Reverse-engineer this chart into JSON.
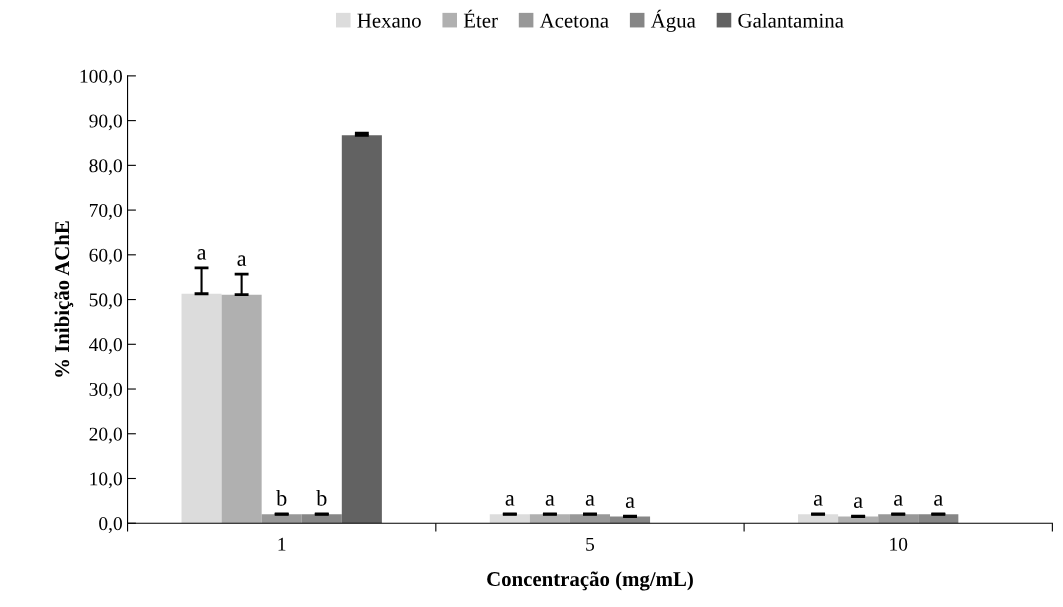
{
  "chart_data": {
    "type": "bar",
    "xlabel": "Concentração (mg/mL)",
    "ylabel": "% Inibição AChE",
    "categories": [
      "1",
      "5",
      "10"
    ],
    "series": [
      {
        "name": "Hexano",
        "color": "#dcdcdc",
        "values": [
          51.3,
          2.0,
          2.0
        ],
        "errors": [
          5.8,
          0.1,
          0.1
        ],
        "value_labels": [
          "a",
          "a",
          "a"
        ]
      },
      {
        "name": "Éter",
        "color": "#b0b0b0",
        "values": [
          51.1,
          2.0,
          1.5
        ],
        "errors": [
          4.6,
          0.1,
          0.1
        ],
        "value_labels": [
          "a",
          "a",
          "a"
        ]
      },
      {
        "name": "Acetona",
        "color": "#989898",
        "values": [
          2.0,
          2.0,
          2.0
        ],
        "errors": [
          0.1,
          0.1,
          0.1
        ],
        "value_labels": [
          "b",
          "a",
          "a"
        ]
      },
      {
        "name": "Água",
        "color": "#868686",
        "values": [
          2.0,
          1.5,
          2.0
        ],
        "errors": [
          0.1,
          0.1,
          0.1
        ],
        "value_labels": [
          "b",
          "a",
          "a"
        ]
      },
      {
        "name": "Galantamina",
        "color": "#626262",
        "values": [
          86.7,
          null,
          null
        ],
        "errors": [
          0.5,
          null,
          null
        ]
      }
    ],
    "ylim": [
      0,
      100
    ],
    "yticks": [
      {
        "value": 0,
        "label": "0,0"
      },
      {
        "value": 10,
        "label": "10,0"
      },
      {
        "value": 20,
        "label": "20,0"
      },
      {
        "value": 30,
        "label": "30,0"
      },
      {
        "value": 40,
        "label": "40,0"
      },
      {
        "value": 50,
        "label": "50,0"
      },
      {
        "value": 60,
        "label": "60,0"
      },
      {
        "value": 70,
        "label": "70,0"
      },
      {
        "value": 80,
        "label": "80,0"
      },
      {
        "value": 90,
        "label": "90,0"
      },
      {
        "value": 100,
        "label": "100,0"
      }
    ],
    "grid": false,
    "legend": "top"
  }
}
